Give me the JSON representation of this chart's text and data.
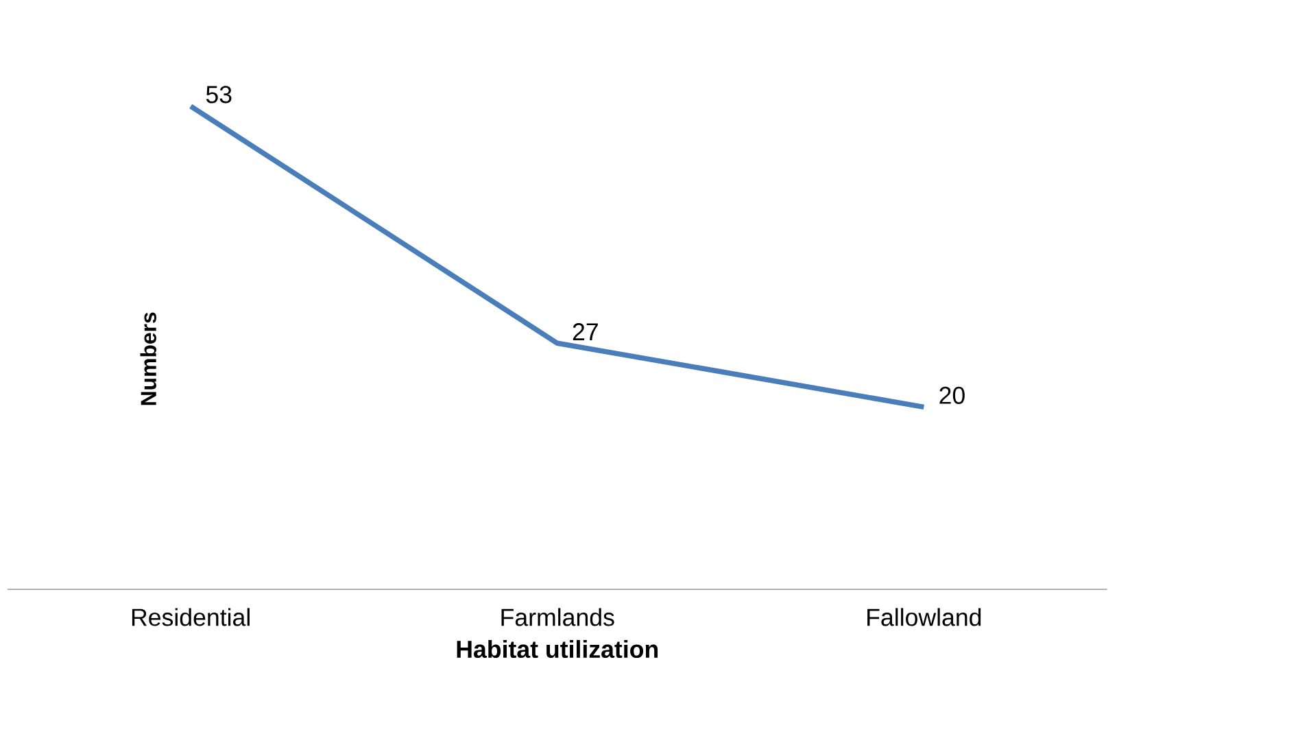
{
  "chart_data": {
    "type": "line",
    "xlabel": "Habitat utilization",
    "ylabel": "Numbers",
    "categories": [
      "Residential",
      "Farmlands",
      "Fallowland"
    ],
    "values": [
      53,
      27,
      20
    ],
    "color": "#4a7ebb",
    "data_labels": true
  }
}
